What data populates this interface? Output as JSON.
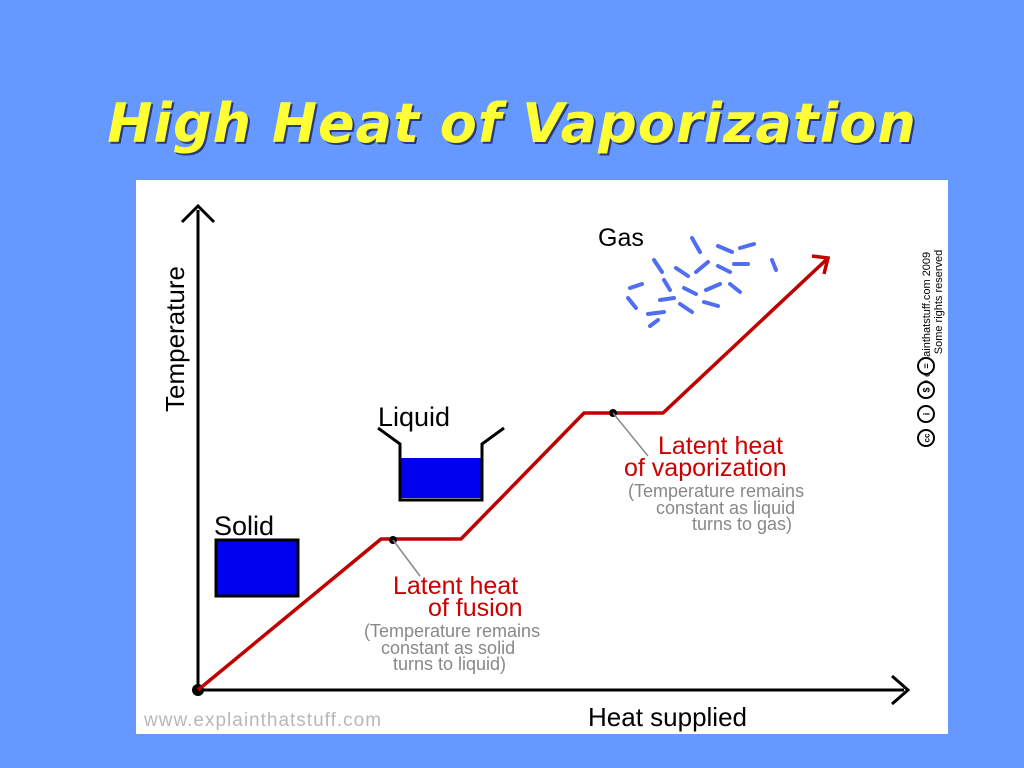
{
  "slide": {
    "title": "High Heat of Vaporization"
  },
  "diagram": {
    "y_axis_label": "Temperature",
    "x_axis_label": "Heat supplied",
    "states": {
      "solid": "Solid",
      "liquid": "Liquid",
      "gas": "Gas"
    },
    "fusion": {
      "title_line1": "Latent heat",
      "title_line2": "of fusion",
      "note_line1": "(Temperature remains",
      "note_line2": "constant as solid",
      "note_line3": "turns to liquid)"
    },
    "vaporization": {
      "title_line1": "Latent heat",
      "title_line2": "of vaporization",
      "note_line1": "(Temperature remains",
      "note_line2": "constant as liquid",
      "note_line3": "turns to gas)"
    },
    "website": "www.explainthatstuff.com",
    "copyright_line1": "© explainthatstuff.com 2009",
    "copyright_line2": "Some rights reserved",
    "cc_icons": [
      "cc",
      "i",
      "$",
      "="
    ],
    "colors": {
      "curve": "#c00000",
      "label_red": "#cc0000",
      "block": "#0000ee",
      "gas_particles": "#3355ee"
    }
  }
}
